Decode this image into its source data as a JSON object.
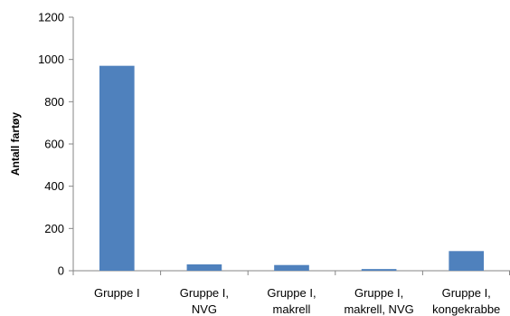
{
  "chart_data": {
    "type": "bar",
    "title": "",
    "xlabel": "",
    "ylabel": "Antall fartøy",
    "categories": [
      [
        "Gruppe I"
      ],
      [
        "Gruppe I,",
        "NVG"
      ],
      [
        "Gruppe I,",
        "makrell"
      ],
      [
        "Gruppe I,",
        "makrell, NVG"
      ],
      [
        "Gruppe I,",
        "kongekrabbe"
      ]
    ],
    "values": [
      970,
      30,
      27,
      8,
      93
    ],
    "ylim": [
      0,
      1200
    ],
    "yticks": [
      "0",
      "200",
      "400",
      "600",
      "800",
      "1000",
      "1200"
    ],
    "grid": false,
    "legend": "none",
    "bar_color": "#4f81bd"
  }
}
